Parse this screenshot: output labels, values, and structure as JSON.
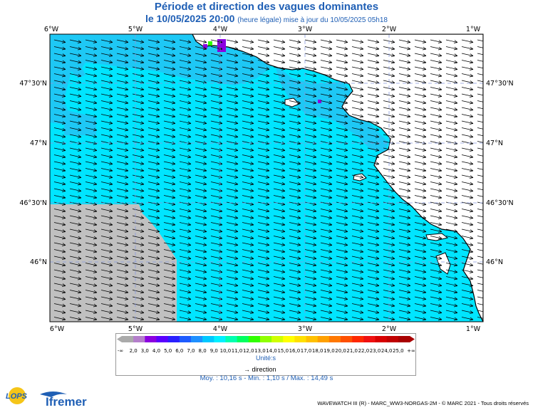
{
  "title": "Période et direction des vagues dominantes",
  "date_bold": "le 10/05/2025 20:00",
  "date_sub": "(heure légale) mise à jour du 10/05/2025 05h18",
  "lon_labels": [
    "6°W",
    "5°W",
    "4°W",
    "3°W",
    "2°W",
    "1°W"
  ],
  "lat_labels": [
    "47°30'N",
    "47°N",
    "46°30'N",
    "46°N"
  ],
  "colorbar": {
    "min_symbol": "-∞",
    "max_symbol": "+∞",
    "ticks": [
      "2,0",
      "3,0",
      "4,0",
      "5,0",
      "6,0",
      "7,0",
      "8,0",
      "9,0",
      "10,0",
      "11,0",
      "12,0",
      "13,0",
      "14,0",
      "15,0",
      "16,0",
      "17,0",
      "18,0",
      "19,0",
      "20,0",
      "21,0",
      "22,0",
      "23,0",
      "24,0",
      "25,0"
    ],
    "colors": [
      "#aaaaaa",
      "#b47ecb",
      "#8b00e0",
      "#5a00ff",
      "#2a20ff",
      "#1e5cff",
      "#1e90ff",
      "#00c8ff",
      "#00f0ff",
      "#00ffb0",
      "#00ff60",
      "#30ff00",
      "#90ff00",
      "#d0ff00",
      "#ffff00",
      "#ffe000",
      "#ffc000",
      "#ffa000",
      "#ff7800",
      "#ff5000",
      "#ff2800",
      "#f01010",
      "#d80000",
      "#c00000",
      "#a80000"
    ],
    "unit": "Unité:s"
  },
  "direction_label": "direction",
  "stats": "Moy. : 10,16 s   -   Min. : 1,10 s / Max. : 14,49 s",
  "footer": "WAVEWATCH III (R) - MARC_WW3-NORGAS-2M - © MARC 2021 - Tous droits réservés",
  "logo_lops": "LOPS",
  "logo_ifremer": "Ifremer",
  "colors": {
    "sea": "#00e5ff",
    "offshore": "#1ec8f5",
    "no_data": "#c0c0c0",
    "land": "#ffffff",
    "arrow": "#000000",
    "title": "#1f5fb5"
  }
}
